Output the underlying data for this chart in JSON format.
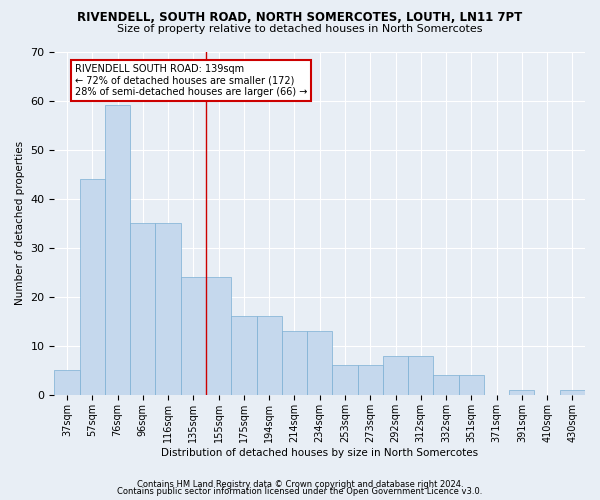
{
  "title": "RIVENDELL, SOUTH ROAD, NORTH SOMERCOTES, LOUTH, LN11 7PT",
  "subtitle": "Size of property relative to detached houses in North Somercotes",
  "xlabel": "Distribution of detached houses by size in North Somercotes",
  "ylabel": "Number of detached properties",
  "categories": [
    "37sqm",
    "57sqm",
    "76sqm",
    "96sqm",
    "116sqm",
    "135sqm",
    "155sqm",
    "175sqm",
    "194sqm",
    "214sqm",
    "234sqm",
    "253sqm",
    "273sqm",
    "292sqm",
    "312sqm",
    "332sqm",
    "351sqm",
    "371sqm",
    "391sqm",
    "410sqm",
    "430sqm"
  ],
  "values": [
    5,
    44,
    59,
    35,
    35,
    24,
    24,
    16,
    16,
    13,
    13,
    6,
    6,
    8,
    8,
    4,
    4,
    0,
    1,
    0,
    1
  ],
  "bar_color": "#c5d8ed",
  "bar_edgecolor": "#7bafd4",
  "vline_position": 5.5,
  "vline_color": "#cc0000",
  "annotation_line1": "RIVENDELL SOUTH ROAD: 139sqm",
  "annotation_line2": "← 72% of detached houses are smaller (172)",
  "annotation_line3": "28% of semi-detached houses are larger (66) →",
  "annotation_box_facecolor": "#ffffff",
  "annotation_box_edgecolor": "#cc0000",
  "ylim": [
    0,
    70
  ],
  "bg_color": "#e8eef5",
  "footer1": "Contains HM Land Registry data © Crown copyright and database right 2024.",
  "footer2": "Contains public sector information licensed under the Open Government Licence v3.0."
}
